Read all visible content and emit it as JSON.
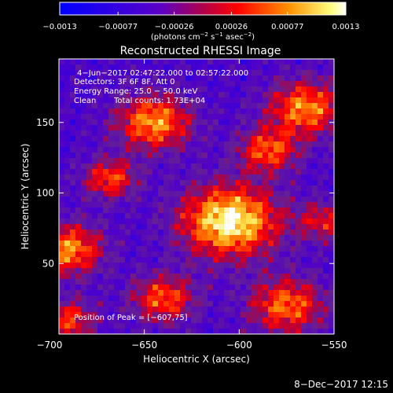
{
  "chart_data": {
    "type": "heatmap",
    "title": "Reconstructed RHESSI Image",
    "xlabel": "Heliocentric X (arcsec)",
    "ylabel": "Heliocentric Y (arcsec)",
    "xlim": [
      -695,
      -550
    ],
    "ylim": [
      0,
      195
    ],
    "x_ticks": [
      -700,
      -650,
      -600,
      -550
    ],
    "y_ticks": [
      50,
      100,
      150
    ],
    "x_tick_labels": [
      "−700",
      "−650",
      "−600",
      "−550"
    ],
    "y_tick_labels": [
      "50",
      "100",
      "150"
    ],
    "colorbar": {
      "range": [
        -0.0013,
        0.0013
      ],
      "tick_values": [
        -0.0013,
        -0.00077,
        -0.00026,
        0.00026,
        0.00077,
        0.0013
      ],
      "tick_labels": [
        "−0.0013",
        "−0.00077",
        "−0.00026",
        "0.00026",
        "0.00077",
        "0.0013"
      ],
      "unit_main": "(photons cm",
      "unit_exp1": "−2",
      "unit_mid": " s",
      "unit_exp2": "−1",
      "unit_mid2": " asec",
      "unit_exp3": "−2",
      "unit_close": ")",
      "colors": [
        "#0000ff",
        "#7700aa",
        "#ff0000",
        "#ff8800",
        "#ffffff"
      ]
    },
    "annotations": {
      "time_range": "4−Jun−2017 02:47:22.000 to 02:57:22.000",
      "detectors": "Detectors: 3F 6F 8F, Att 0",
      "energy": "Energy Range: 25.0 − 50.0 keV",
      "clean": "Clean",
      "total_counts": "Total counts: 1.73E+04",
      "peak": "Position of Peak = [−607,75]"
    },
    "peak": [
      -607,
      75
    ],
    "intensity_levels": [
      -0.0013,
      0.0013
    ],
    "blobs": [
      {
        "x": -605,
        "y": 80,
        "value": 0.0013,
        "sigma": 18
      },
      {
        "x": -645,
        "y": 150,
        "value": 0.00085,
        "sigma": 14
      },
      {
        "x": -668,
        "y": 110,
        "value": 0.00055,
        "sigma": 10
      },
      {
        "x": -690,
        "y": 60,
        "value": 0.0008,
        "sigma": 13
      },
      {
        "x": -565,
        "y": 160,
        "value": 0.0008,
        "sigma": 14
      },
      {
        "x": -585,
        "y": 130,
        "value": 0.0006,
        "sigma": 11
      },
      {
        "x": -575,
        "y": 20,
        "value": 0.0007,
        "sigma": 14
      },
      {
        "x": -640,
        "y": 25,
        "value": 0.0006,
        "sigma": 12
      },
      {
        "x": -690,
        "y": 10,
        "value": 0.0005,
        "sigma": 10
      },
      {
        "x": -555,
        "y": 80,
        "value": 0.0003,
        "sigma": 10
      }
    ]
  },
  "footer": {
    "timestamp": "8−Dec−2017 12:15"
  }
}
